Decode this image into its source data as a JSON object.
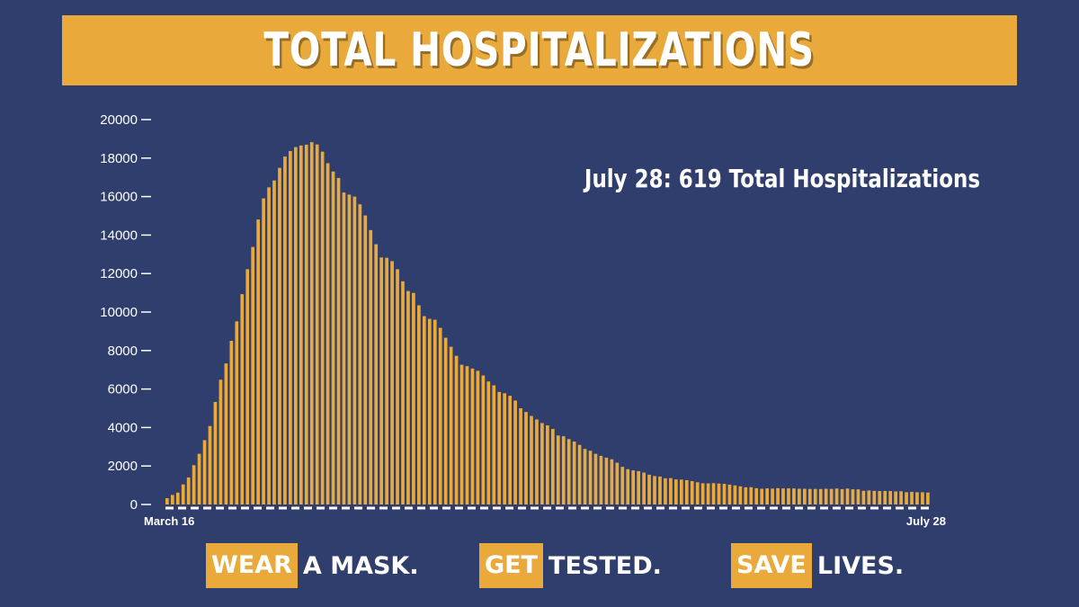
{
  "header": {
    "title": "TOTAL HOSPITALIZATIONS"
  },
  "annotation": "July 28: 619 Total Hospitalizations",
  "slogans": [
    {
      "highlight": "WEAR",
      "rest": "A MASK."
    },
    {
      "highlight": "GET",
      "rest": "TESTED."
    },
    {
      "highlight": "SAVE",
      "rest": "LIVES."
    }
  ],
  "colors": {
    "background": "#2f3e6c",
    "accent": "#e9a93b",
    "text": "#ffffff"
  },
  "chart_data": {
    "type": "bar",
    "title": "TOTAL HOSPITALIZATIONS",
    "xlabel": "",
    "ylabel": "",
    "x_start_label": "March 16",
    "x_end_label": "July 28",
    "ylim": [
      0,
      20000
    ],
    "yticks": [
      0,
      2000,
      4000,
      6000,
      8000,
      10000,
      12000,
      14000,
      16000,
      18000,
      20000
    ],
    "grid": false,
    "values": [
      326,
      496,
      617,
      1042,
      1406,
      2043,
      2635,
      3343,
      4079,
      5327,
      6481,
      7328,
      8503,
      9517,
      10929,
      12226,
      13383,
      14810,
      15905,
      16479,
      16837,
      17493,
      18079,
      18368,
      18569,
      18654,
      18697,
      18825,
      18707,
      18335,
      17735,
      17303,
      16967,
      16213,
      16103,
      15999,
      15599,
      15021,
      14258,
      13524,
      12839,
      12819,
      12646,
      12226,
      11598,
      11092,
      10993,
      10350,
      9786,
      9647,
      9600,
      9179,
      8665,
      8196,
      7726,
      7262,
      7189,
      7063,
      6946,
      6706,
      6394,
      6192,
      5848,
      5781,
      5651,
      5400,
      4998,
      4806,
      4600,
      4418,
      4230,
      4111,
      3925,
      3587,
      3544,
      3398,
      3270,
      3098,
      2888,
      2794,
      2634,
      2526,
      2434,
      2349,
      2172,
      1957,
      1833,
      1770,
      1734,
      1657,
      1547,
      1479,
      1454,
      1362,
      1372,
      1300,
      1294,
      1263,
      1215,
      1154,
      1102,
      1095,
      1107,
      1087,
      1070,
      1032,
      990,
      944,
      895,
      898,
      847,
      817,
      837,
      826,
      849,
      836,
      839,
      835,
      818,
      818,
      806,
      809,
      805,
      817,
      811,
      830,
      798,
      828,
      791,
      786,
      712,
      730,
      709,
      701,
      704,
      699,
      679,
      689,
      637,
      657,
      636,
      635,
      619
    ]
  }
}
